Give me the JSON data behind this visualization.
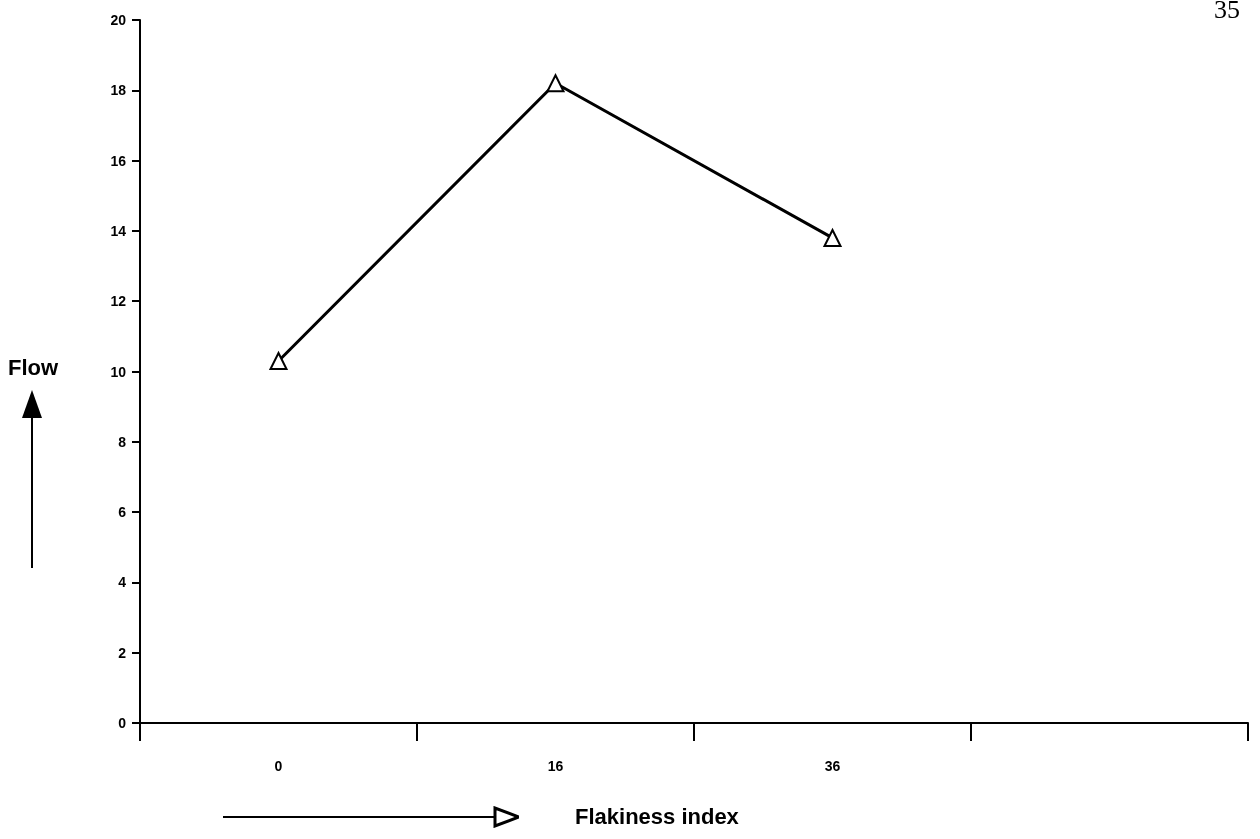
{
  "chart_data": {
    "type": "line",
    "xlabel": "Flakiness index",
    "ylabel": "Flow",
    "categories": [
      "0",
      "16",
      "36",
      null
    ],
    "series": [
      {
        "color": "#000000",
        "values": [
          10.3,
          18.2,
          13.8,
          null
        ]
      }
    ],
    "ylim": [
      0,
      20
    ],
    "yticks": [
      0,
      2,
      4,
      6,
      8,
      10,
      12,
      14,
      16,
      18,
      20
    ],
    "grid": false,
    "marker": "triangle",
    "line_style": "solid",
    "annotations": [
      "35"
    ]
  }
}
